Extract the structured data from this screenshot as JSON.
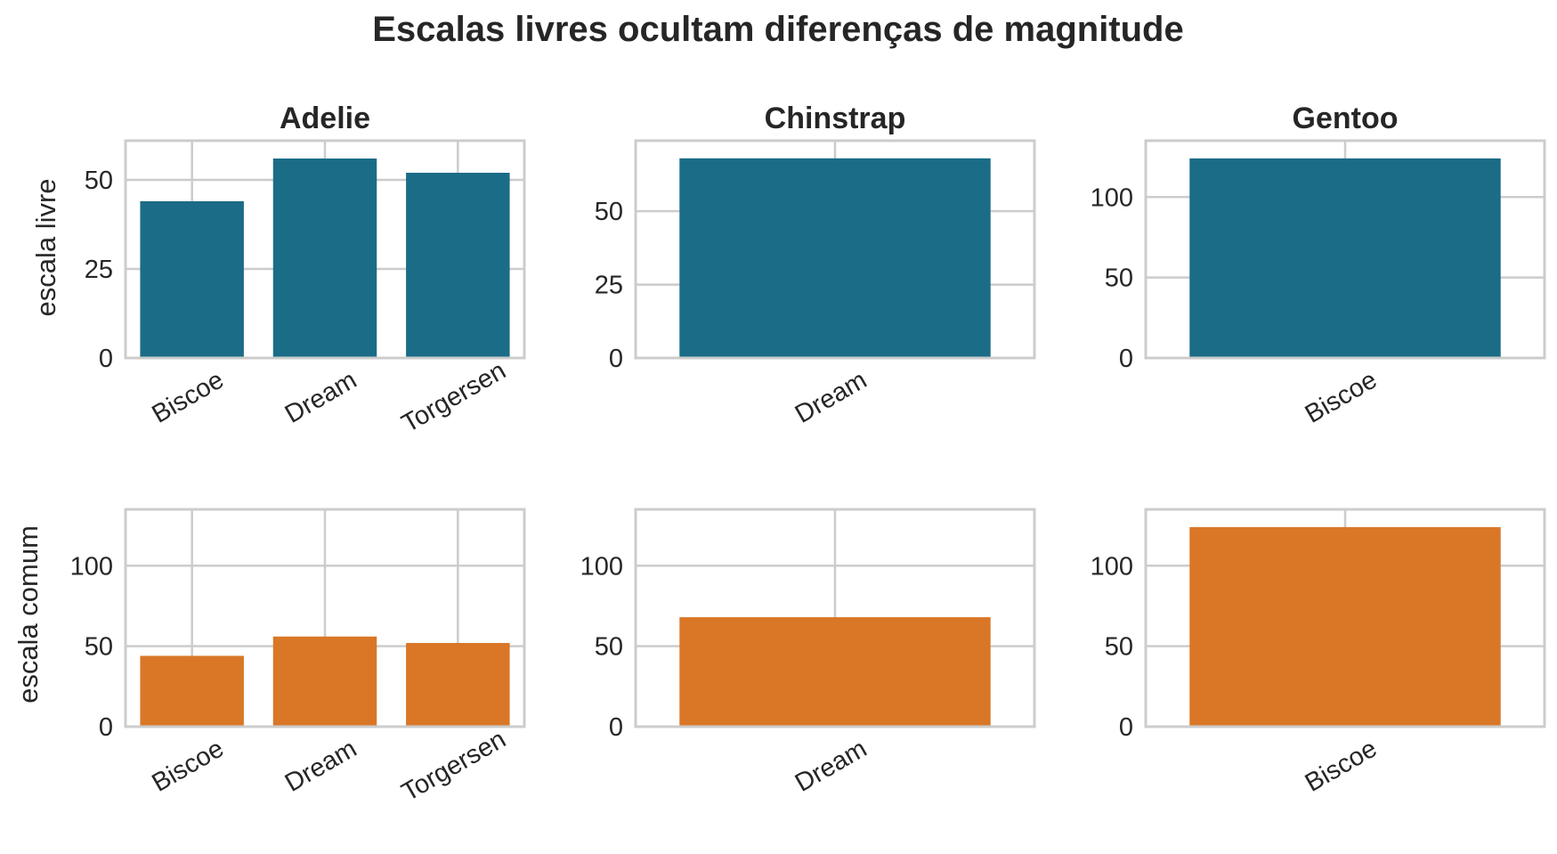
{
  "chart_data": {
    "type": "bar",
    "title": "Escalas livres ocultam diferenças de magnitude",
    "columns": [
      "Adelie",
      "Chinstrap",
      "Gentoo"
    ],
    "colors": {
      "free": "#1b6c87",
      "common": "#d97727",
      "axis": "#cccccc",
      "text": "#262626"
    },
    "rows": [
      {
        "ylabel": "escala livre",
        "color_key": "free",
        "panels": [
          {
            "species": "Adelie",
            "categories": [
              "Biscoe",
              "Dream",
              "Torgersen"
            ],
            "values": [
              44,
              56,
              52
            ],
            "ylim": [
              0,
              61
            ],
            "yticks": [
              0,
              25,
              50
            ]
          },
          {
            "species": "Chinstrap",
            "categories": [
              "Dream"
            ],
            "values": [
              68
            ],
            "ylim": [
              0,
              74
            ],
            "yticks": [
              0,
              25,
              50
            ]
          },
          {
            "species": "Gentoo",
            "categories": [
              "Biscoe"
            ],
            "values": [
              124
            ],
            "ylim": [
              0,
              135
            ],
            "yticks": [
              0,
              50,
              100
            ]
          }
        ]
      },
      {
        "ylabel": "escala comum",
        "color_key": "common",
        "panels": [
          {
            "species": "Adelie",
            "categories": [
              "Biscoe",
              "Dream",
              "Torgersen"
            ],
            "values": [
              44,
              56,
              52
            ],
            "ylim": [
              0,
              135
            ],
            "yticks": [
              0,
              50,
              100
            ]
          },
          {
            "species": "Chinstrap",
            "categories": [
              "Dream"
            ],
            "values": [
              68
            ],
            "ylim": [
              0,
              135
            ],
            "yticks": [
              0,
              50,
              100
            ]
          },
          {
            "species": "Gentoo",
            "categories": [
              "Biscoe"
            ],
            "values": [
              124
            ],
            "ylim": [
              0,
              135
            ],
            "yticks": [
              0,
              50,
              100
            ]
          }
        ]
      }
    ]
  }
}
